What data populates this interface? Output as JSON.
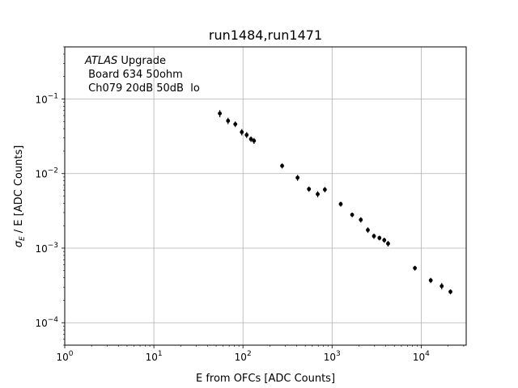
{
  "chart_data": {
    "type": "scatter",
    "title": "run1484,run1471",
    "xlabel": "E from OFCs [ADC Counts]",
    "ylabel_main": "σ",
    "ylabel_sub": "E",
    "ylabel_rest": " / E [ADC Counts]",
    "x_scale": "log",
    "y_scale": "log",
    "xlim": [
      1,
      32000
    ],
    "ylim": [
      5e-05,
      0.5
    ],
    "grid": true,
    "x_ticks": [
      {
        "value": 1,
        "base": "10",
        "exp": "0"
      },
      {
        "value": 10,
        "base": "10",
        "exp": "1"
      },
      {
        "value": 100,
        "base": "10",
        "exp": "2"
      },
      {
        "value": 1000,
        "base": "10",
        "exp": "3"
      },
      {
        "value": 10000,
        "base": "10",
        "exp": "4"
      }
    ],
    "y_ticks": [
      {
        "value": 0.0001,
        "base": "10",
        "exp": "−4"
      },
      {
        "value": 0.001,
        "base": "10",
        "exp": "−3"
      },
      {
        "value": 0.01,
        "base": "10",
        "exp": "−2"
      },
      {
        "value": 0.1,
        "base": "10",
        "exp": "−1"
      }
    ],
    "annotation": {
      "atlas": "ATLAS",
      "upgrade": " Upgrade",
      "line2": " Board 634 50ohm",
      "line3": " Ch079 20dB 50dB  lo"
    },
    "marker_color": "#000000",
    "points": [
      {
        "x": 55,
        "y": 0.064,
        "err": 0.007
      },
      {
        "x": 68,
        "y": 0.051,
        "err": 0.005
      },
      {
        "x": 82,
        "y": 0.046,
        "err": 0.004
      },
      {
        "x": 97,
        "y": 0.036,
        "err": 0.0035
      },
      {
        "x": 110,
        "y": 0.033,
        "err": 0.003
      },
      {
        "x": 123,
        "y": 0.029,
        "err": 0.0025
      },
      {
        "x": 133,
        "y": 0.0275,
        "err": 0.0025
      },
      {
        "x": 275,
        "y": 0.0127,
        "err": 0.001
      },
      {
        "x": 410,
        "y": 0.0088,
        "err": 0.0008
      },
      {
        "x": 550,
        "y": 0.0062,
        "err": 0.0005
      },
      {
        "x": 690,
        "y": 0.0053,
        "err": 0.0005
      },
      {
        "x": 830,
        "y": 0.0061,
        "err": 0.0005
      },
      {
        "x": 1250,
        "y": 0.0039,
        "err": 0.0003
      },
      {
        "x": 1680,
        "y": 0.0028,
        "err": 0.0002
      },
      {
        "x": 2100,
        "y": 0.0024,
        "err": 0.0002
      },
      {
        "x": 2520,
        "y": 0.00175,
        "err": 0.00015
      },
      {
        "x": 2950,
        "y": 0.00145,
        "err": 0.00012
      },
      {
        "x": 3400,
        "y": 0.00137,
        "err": 0.0001
      },
      {
        "x": 3850,
        "y": 0.00128,
        "err": 0.0001
      },
      {
        "x": 4250,
        "y": 0.00115,
        "err": 0.0001
      },
      {
        "x": 8500,
        "y": 0.00054,
        "err": 4e-05
      },
      {
        "x": 12800,
        "y": 0.00037,
        "err": 3e-05
      },
      {
        "x": 17000,
        "y": 0.00031,
        "err": 3e-05
      },
      {
        "x": 21300,
        "y": 0.00026,
        "err": 2e-05
      }
    ]
  }
}
